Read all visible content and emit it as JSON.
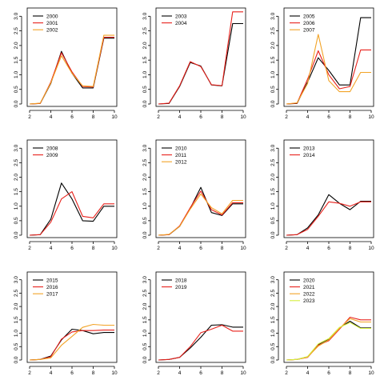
{
  "colors": {
    "black": "#000000",
    "red": "#e8211b",
    "orange": "#f2a326",
    "yellowgreen": "#d6ef3d"
  },
  "chart_data": [
    {
      "type": "line",
      "x": [
        2,
        3,
        4,
        5,
        6,
        7,
        8,
        9,
        10
      ],
      "xticks": [
        2,
        4,
        6,
        8,
        10
      ],
      "xlim": [
        2,
        10
      ],
      "yticks": [
        0.0,
        0.5,
        1.0,
        1.5,
        2.0,
        2.5,
        3.0
      ],
      "ylim": [
        0,
        3.2
      ],
      "series": [
        {
          "name": "2000",
          "color": "black",
          "values": [
            0.0,
            0.02,
            0.7,
            1.8,
            1.05,
            0.55,
            0.55,
            2.25,
            2.25
          ]
        },
        {
          "name": "2001",
          "color": "red",
          "values": [
            0.0,
            0.02,
            0.75,
            1.75,
            1.1,
            0.6,
            0.58,
            2.28,
            2.28
          ]
        },
        {
          "name": "2002",
          "color": "orange",
          "values": [
            0.0,
            0.03,
            0.72,
            1.65,
            1.05,
            0.62,
            0.6,
            2.35,
            2.35
          ]
        }
      ]
    },
    {
      "type": "line",
      "x": [
        2,
        3,
        4,
        5,
        6,
        7,
        8,
        9,
        10
      ],
      "xticks": [
        2,
        4,
        6,
        8,
        10
      ],
      "xlim": [
        2,
        10
      ],
      "yticks": [
        0.0,
        0.5,
        1.0,
        1.5,
        2.0,
        2.5,
        3.0
      ],
      "ylim": [
        0,
        3.2
      ],
      "series": [
        {
          "name": "2003",
          "color": "black",
          "values": [
            0.0,
            0.02,
            0.6,
            1.42,
            1.3,
            0.65,
            0.62,
            2.75,
            2.75
          ]
        },
        {
          "name": "2004",
          "color": "red",
          "values": [
            0.0,
            0.03,
            0.62,
            1.45,
            1.28,
            0.66,
            0.63,
            3.15,
            3.15
          ]
        }
      ]
    },
    {
      "type": "line",
      "x": [
        2,
        3,
        4,
        5,
        6,
        7,
        8,
        9,
        10
      ],
      "xticks": [
        2,
        4,
        6,
        8,
        10
      ],
      "xlim": [
        2,
        10
      ],
      "yticks": [
        0.0,
        0.5,
        1.0,
        1.5,
        2.0,
        2.5,
        3.0
      ],
      "ylim": [
        0,
        3.2
      ],
      "series": [
        {
          "name": "2005",
          "color": "black",
          "values": [
            0.0,
            0.02,
            0.75,
            1.58,
            1.15,
            0.65,
            0.65,
            2.95,
            2.95
          ]
        },
        {
          "name": "2006",
          "color": "red",
          "values": [
            0.0,
            0.03,
            0.85,
            1.82,
            1.0,
            0.52,
            0.6,
            1.85,
            1.85
          ]
        },
        {
          "name": "2007",
          "color": "orange",
          "values": [
            0.0,
            0.04,
            0.7,
            2.38,
            0.8,
            0.42,
            0.42,
            1.08,
            1.08
          ]
        }
      ]
    },
    {
      "type": "line",
      "x": [
        2,
        3,
        4,
        5,
        6,
        7,
        8,
        9,
        10
      ],
      "xticks": [
        2,
        4,
        6,
        8,
        10
      ],
      "xlim": [
        2,
        10
      ],
      "yticks": [
        0.0,
        0.5,
        1.0,
        1.5,
        2.0,
        2.5,
        3.0
      ],
      "ylim": [
        0,
        3.2
      ],
      "series": [
        {
          "name": "2008",
          "color": "black",
          "values": [
            0.0,
            0.02,
            0.55,
            1.8,
            1.25,
            0.5,
            0.48,
            1.0,
            1.0
          ]
        },
        {
          "name": "2009",
          "color": "red",
          "values": [
            0.0,
            0.02,
            0.45,
            1.25,
            1.5,
            0.65,
            0.6,
            1.08,
            1.08
          ]
        }
      ]
    },
    {
      "type": "line",
      "x": [
        2,
        3,
        4,
        5,
        6,
        7,
        8,
        9,
        10
      ],
      "xticks": [
        2,
        4,
        6,
        8,
        10
      ],
      "xlim": [
        2,
        10
      ],
      "yticks": [
        0.0,
        0.5,
        1.0,
        1.5,
        2.0,
        2.5,
        3.0
      ],
      "ylim": [
        0,
        3.2
      ],
      "series": [
        {
          "name": "2010",
          "color": "black",
          "values": [
            0.0,
            0.02,
            0.3,
            0.92,
            1.65,
            0.78,
            0.68,
            1.08,
            1.08
          ]
        },
        {
          "name": "2011",
          "color": "red",
          "values": [
            0.0,
            0.02,
            0.32,
            0.95,
            1.52,
            0.88,
            0.7,
            1.12,
            1.12
          ]
        },
        {
          "name": "2012",
          "color": "orange",
          "values": [
            0.0,
            0.03,
            0.3,
            0.9,
            1.42,
            0.95,
            0.74,
            1.2,
            1.2
          ]
        }
      ]
    },
    {
      "type": "line",
      "x": [
        2,
        3,
        4,
        5,
        6,
        7,
        8,
        9,
        10
      ],
      "xticks": [
        2,
        4,
        6,
        8,
        10
      ],
      "xlim": [
        2,
        10
      ],
      "yticks": [
        0.0,
        0.5,
        1.0,
        1.5,
        2.0,
        2.5,
        3.0
      ],
      "ylim": [
        0,
        3.2
      ],
      "series": [
        {
          "name": "2013",
          "color": "black",
          "values": [
            0.0,
            0.02,
            0.25,
            0.7,
            1.4,
            1.1,
            0.88,
            1.17,
            1.17
          ]
        },
        {
          "name": "2014",
          "color": "red",
          "values": [
            0.0,
            0.02,
            0.2,
            0.65,
            1.15,
            1.1,
            1.0,
            1.15,
            1.15
          ]
        }
      ]
    },
    {
      "type": "line",
      "x": [
        2,
        3,
        4,
        5,
        6,
        7,
        8,
        9,
        10
      ],
      "xticks": [
        2,
        4,
        6,
        8,
        10
      ],
      "xlim": [
        2,
        10
      ],
      "yticks": [
        0.0,
        0.5,
        1.0,
        1.5,
        2.0,
        2.5,
        3.0
      ],
      "ylim": [
        0,
        3.2
      ],
      "series": [
        {
          "name": "2015",
          "color": "black",
          "values": [
            0.0,
            0.02,
            0.15,
            0.75,
            1.15,
            1.1,
            0.98,
            1.03,
            1.03
          ]
        },
        {
          "name": "2016",
          "color": "red",
          "values": [
            0.0,
            0.02,
            0.12,
            0.78,
            1.05,
            1.1,
            1.1,
            1.12,
            1.12
          ]
        },
        {
          "name": "2017",
          "color": "orange",
          "values": [
            0.0,
            0.02,
            0.08,
            0.55,
            0.88,
            1.22,
            1.33,
            1.3,
            1.3
          ]
        }
      ]
    },
    {
      "type": "line",
      "x": [
        2,
        3,
        4,
        5,
        6,
        7,
        8,
        9,
        10
      ],
      "xticks": [
        2,
        4,
        6,
        8,
        10
      ],
      "xlim": [
        2,
        10
      ],
      "yticks": [
        0.0,
        0.5,
        1.0,
        1.5,
        2.0,
        2.5,
        3.0
      ],
      "ylim": [
        0,
        3.2
      ],
      "series": [
        {
          "name": "2018",
          "color": "black",
          "values": [
            0.0,
            0.02,
            0.1,
            0.45,
            0.85,
            1.3,
            1.32,
            1.23,
            1.23
          ]
        },
        {
          "name": "2019",
          "color": "red",
          "values": [
            0.0,
            0.02,
            0.1,
            0.5,
            1.02,
            1.15,
            1.3,
            1.08,
            1.08
          ]
        }
      ]
    },
    {
      "type": "line",
      "x": [
        2,
        3,
        4,
        5,
        6,
        7,
        8,
        9,
        10
      ],
      "xticks": [
        2,
        4,
        6,
        8,
        10
      ],
      "xlim": [
        2,
        10
      ],
      "yticks": [
        0.0,
        0.5,
        1.0,
        1.5,
        2.0,
        2.5,
        3.0
      ],
      "ylim": [
        0,
        3.2
      ],
      "series": [
        {
          "name": "2020",
          "color": "black",
          "values": [
            0.0,
            0.02,
            0.12,
            0.58,
            0.78,
            1.2,
            1.45,
            1.2,
            1.2
          ]
        },
        {
          "name": "2021",
          "color": "red",
          "values": [
            0.0,
            0.02,
            0.1,
            0.55,
            0.72,
            1.15,
            1.6,
            1.5,
            1.5
          ]
        },
        {
          "name": "2022",
          "color": "orange",
          "values": [
            0.0,
            0.02,
            0.11,
            0.52,
            0.75,
            1.18,
            1.55,
            1.42,
            1.42
          ]
        },
        {
          "name": "2023",
          "color": "yellowgreen",
          "values": [
            0.0,
            0.02,
            0.13,
            0.6,
            0.8,
            1.22,
            1.4,
            1.18,
            1.18
          ]
        }
      ]
    }
  ]
}
